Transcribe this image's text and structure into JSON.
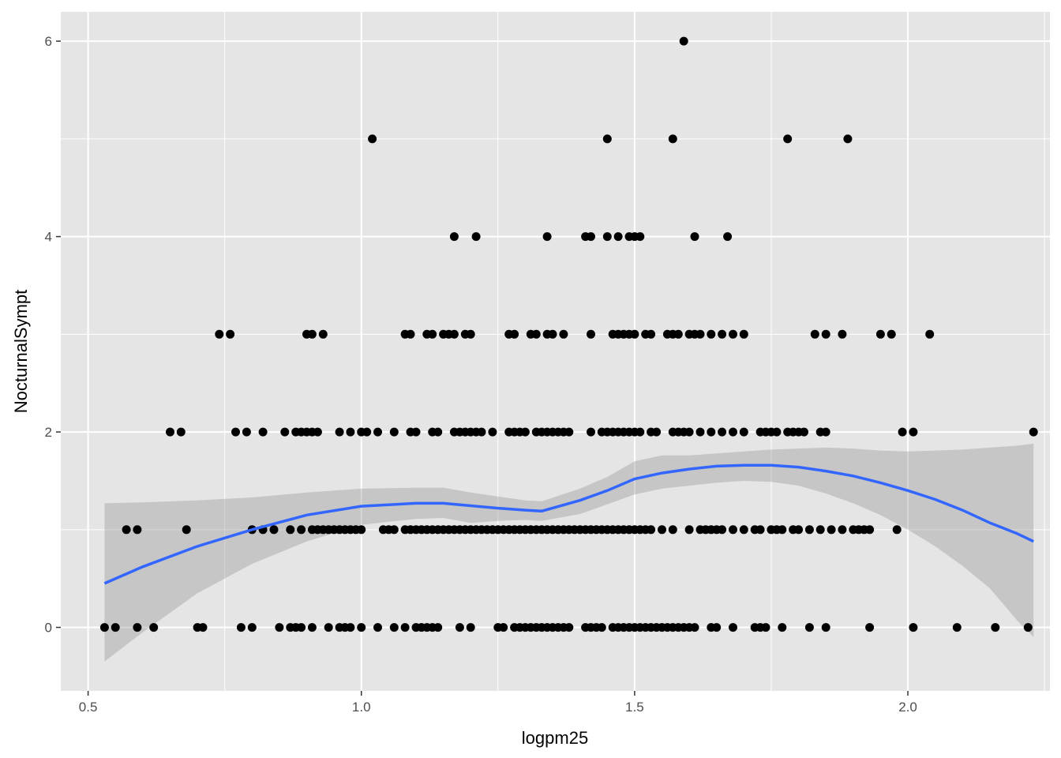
{
  "chart_data": {
    "type": "scatter",
    "xlabel": "logpm25",
    "ylabel": "NocturnalSympt",
    "xlim": [
      0.45,
      2.26
    ],
    "ylim": [
      -0.65,
      6.3
    ],
    "x_ticks": [
      0.5,
      1.0,
      1.5,
      2.0
    ],
    "x_tick_labels": [
      "0.5",
      "1.0",
      "1.5",
      "2.0"
    ],
    "y_ticks": [
      0,
      2,
      4,
      6
    ],
    "y_tick_labels": [
      "0",
      "2",
      "4",
      "6"
    ],
    "grid": true,
    "legend": "none",
    "colors": {
      "panel": "#e5e5e5",
      "grid": "#ffffff",
      "points": "#000000",
      "smooth_line": "#3366ff",
      "ribbon": "#999999"
    },
    "points": [
      [
        0.53,
        0
      ],
      [
        0.55,
        0
      ],
      [
        0.59,
        0
      ],
      [
        0.62,
        0
      ],
      [
        0.7,
        0
      ],
      [
        0.71,
        0
      ],
      [
        0.78,
        0
      ],
      [
        0.8,
        0
      ],
      [
        0.85,
        0
      ],
      [
        0.87,
        0
      ],
      [
        0.88,
        0
      ],
      [
        0.89,
        0
      ],
      [
        0.91,
        0
      ],
      [
        0.94,
        0
      ],
      [
        0.96,
        0
      ],
      [
        0.97,
        0
      ],
      [
        0.98,
        0
      ],
      [
        1.0,
        0
      ],
      [
        1.03,
        0
      ],
      [
        1.06,
        0
      ],
      [
        1.08,
        0
      ],
      [
        1.1,
        0
      ],
      [
        1.11,
        0
      ],
      [
        1.12,
        0
      ],
      [
        1.13,
        0
      ],
      [
        1.14,
        0
      ],
      [
        1.18,
        0
      ],
      [
        1.2,
        0
      ],
      [
        1.25,
        0
      ],
      [
        1.26,
        0
      ],
      [
        1.28,
        0
      ],
      [
        1.29,
        0
      ],
      [
        1.3,
        0
      ],
      [
        1.31,
        0
      ],
      [
        1.32,
        0
      ],
      [
        1.33,
        0
      ],
      [
        1.34,
        0
      ],
      [
        1.35,
        0
      ],
      [
        1.36,
        0
      ],
      [
        1.37,
        0
      ],
      [
        1.38,
        0
      ],
      [
        1.41,
        0
      ],
      [
        1.42,
        0
      ],
      [
        1.43,
        0
      ],
      [
        1.44,
        0
      ],
      [
        1.46,
        0
      ],
      [
        1.47,
        0
      ],
      [
        1.48,
        0
      ],
      [
        1.49,
        0
      ],
      [
        1.5,
        0
      ],
      [
        1.51,
        0
      ],
      [
        1.52,
        0
      ],
      [
        1.53,
        0
      ],
      [
        1.54,
        0
      ],
      [
        1.55,
        0
      ],
      [
        1.56,
        0
      ],
      [
        1.57,
        0
      ],
      [
        1.58,
        0
      ],
      [
        1.59,
        0
      ],
      [
        1.6,
        0
      ],
      [
        1.61,
        0
      ],
      [
        1.64,
        0
      ],
      [
        1.65,
        0
      ],
      [
        1.68,
        0
      ],
      [
        1.72,
        0
      ],
      [
        1.73,
        0
      ],
      [
        1.74,
        0
      ],
      [
        1.77,
        0
      ],
      [
        1.82,
        0
      ],
      [
        1.85,
        0
      ],
      [
        1.93,
        0
      ],
      [
        2.01,
        0
      ],
      [
        2.09,
        0
      ],
      [
        2.16,
        0
      ],
      [
        2.22,
        0
      ],
      [
        0.57,
        1
      ],
      [
        0.59,
        1
      ],
      [
        0.68,
        1
      ],
      [
        0.8,
        1
      ],
      [
        0.82,
        1
      ],
      [
        0.84,
        1
      ],
      [
        0.87,
        1
      ],
      [
        0.89,
        1
      ],
      [
        0.91,
        1
      ],
      [
        0.92,
        1
      ],
      [
        0.93,
        1
      ],
      [
        0.94,
        1
      ],
      [
        0.95,
        1
      ],
      [
        0.96,
        1
      ],
      [
        0.97,
        1
      ],
      [
        0.98,
        1
      ],
      [
        0.99,
        1
      ],
      [
        1.0,
        1
      ],
      [
        1.04,
        1
      ],
      [
        1.05,
        1
      ],
      [
        1.06,
        1
      ],
      [
        1.08,
        1
      ],
      [
        1.09,
        1
      ],
      [
        1.1,
        1
      ],
      [
        1.11,
        1
      ],
      [
        1.12,
        1
      ],
      [
        1.13,
        1
      ],
      [
        1.14,
        1
      ],
      [
        1.15,
        1
      ],
      [
        1.16,
        1
      ],
      [
        1.17,
        1
      ],
      [
        1.18,
        1
      ],
      [
        1.19,
        1
      ],
      [
        1.2,
        1
      ],
      [
        1.21,
        1
      ],
      [
        1.22,
        1
      ],
      [
        1.23,
        1
      ],
      [
        1.24,
        1
      ],
      [
        1.25,
        1
      ],
      [
        1.26,
        1
      ],
      [
        1.27,
        1
      ],
      [
        1.28,
        1
      ],
      [
        1.29,
        1
      ],
      [
        1.3,
        1
      ],
      [
        1.31,
        1
      ],
      [
        1.32,
        1
      ],
      [
        1.33,
        1
      ],
      [
        1.34,
        1
      ],
      [
        1.35,
        1
      ],
      [
        1.36,
        1
      ],
      [
        1.37,
        1
      ],
      [
        1.38,
        1
      ],
      [
        1.39,
        1
      ],
      [
        1.4,
        1
      ],
      [
        1.41,
        1
      ],
      [
        1.42,
        1
      ],
      [
        1.43,
        1
      ],
      [
        1.44,
        1
      ],
      [
        1.45,
        1
      ],
      [
        1.46,
        1
      ],
      [
        1.47,
        1
      ],
      [
        1.48,
        1
      ],
      [
        1.49,
        1
      ],
      [
        1.5,
        1
      ],
      [
        1.51,
        1
      ],
      [
        1.52,
        1
      ],
      [
        1.53,
        1
      ],
      [
        1.55,
        1
      ],
      [
        1.57,
        1
      ],
      [
        1.6,
        1
      ],
      [
        1.62,
        1
      ],
      [
        1.63,
        1
      ],
      [
        1.64,
        1
      ],
      [
        1.65,
        1
      ],
      [
        1.66,
        1
      ],
      [
        1.68,
        1
      ],
      [
        1.7,
        1
      ],
      [
        1.72,
        1
      ],
      [
        1.73,
        1
      ],
      [
        1.75,
        1
      ],
      [
        1.76,
        1
      ],
      [
        1.77,
        1
      ],
      [
        1.79,
        1
      ],
      [
        1.8,
        1
      ],
      [
        1.82,
        1
      ],
      [
        1.84,
        1
      ],
      [
        1.86,
        1
      ],
      [
        1.88,
        1
      ],
      [
        1.9,
        1
      ],
      [
        1.91,
        1
      ],
      [
        1.92,
        1
      ],
      [
        1.93,
        1
      ],
      [
        1.98,
        1
      ],
      [
        0.65,
        2
      ],
      [
        0.67,
        2
      ],
      [
        0.77,
        2
      ],
      [
        0.79,
        2
      ],
      [
        0.82,
        2
      ],
      [
        0.86,
        2
      ],
      [
        0.88,
        2
      ],
      [
        0.89,
        2
      ],
      [
        0.9,
        2
      ],
      [
        0.91,
        2
      ],
      [
        0.92,
        2
      ],
      [
        0.96,
        2
      ],
      [
        0.98,
        2
      ],
      [
        1.0,
        2
      ],
      [
        1.01,
        2
      ],
      [
        1.03,
        2
      ],
      [
        1.06,
        2
      ],
      [
        1.09,
        2
      ],
      [
        1.1,
        2
      ],
      [
        1.13,
        2
      ],
      [
        1.14,
        2
      ],
      [
        1.17,
        2
      ],
      [
        1.18,
        2
      ],
      [
        1.19,
        2
      ],
      [
        1.2,
        2
      ],
      [
        1.21,
        2
      ],
      [
        1.22,
        2
      ],
      [
        1.24,
        2
      ],
      [
        1.27,
        2
      ],
      [
        1.28,
        2
      ],
      [
        1.29,
        2
      ],
      [
        1.3,
        2
      ],
      [
        1.32,
        2
      ],
      [
        1.33,
        2
      ],
      [
        1.34,
        2
      ],
      [
        1.35,
        2
      ],
      [
        1.36,
        2
      ],
      [
        1.37,
        2
      ],
      [
        1.38,
        2
      ],
      [
        1.42,
        2
      ],
      [
        1.44,
        2
      ],
      [
        1.45,
        2
      ],
      [
        1.46,
        2
      ],
      [
        1.47,
        2
      ],
      [
        1.48,
        2
      ],
      [
        1.49,
        2
      ],
      [
        1.5,
        2
      ],
      [
        1.51,
        2
      ],
      [
        1.53,
        2
      ],
      [
        1.54,
        2
      ],
      [
        1.57,
        2
      ],
      [
        1.58,
        2
      ],
      [
        1.59,
        2
      ],
      [
        1.6,
        2
      ],
      [
        1.62,
        2
      ],
      [
        1.64,
        2
      ],
      [
        1.66,
        2
      ],
      [
        1.68,
        2
      ],
      [
        1.7,
        2
      ],
      [
        1.73,
        2
      ],
      [
        1.74,
        2
      ],
      [
        1.75,
        2
      ],
      [
        1.76,
        2
      ],
      [
        1.78,
        2
      ],
      [
        1.79,
        2
      ],
      [
        1.8,
        2
      ],
      [
        1.81,
        2
      ],
      [
        1.84,
        2
      ],
      [
        1.85,
        2
      ],
      [
        1.99,
        2
      ],
      [
        2.01,
        2
      ],
      [
        2.23,
        2
      ],
      [
        0.74,
        3
      ],
      [
        0.76,
        3
      ],
      [
        0.9,
        3
      ],
      [
        0.91,
        3
      ],
      [
        0.93,
        3
      ],
      [
        1.08,
        3
      ],
      [
        1.09,
        3
      ],
      [
        1.12,
        3
      ],
      [
        1.13,
        3
      ],
      [
        1.15,
        3
      ],
      [
        1.16,
        3
      ],
      [
        1.17,
        3
      ],
      [
        1.19,
        3
      ],
      [
        1.2,
        3
      ],
      [
        1.27,
        3
      ],
      [
        1.28,
        3
      ],
      [
        1.31,
        3
      ],
      [
        1.32,
        3
      ],
      [
        1.34,
        3
      ],
      [
        1.35,
        3
      ],
      [
        1.37,
        3
      ],
      [
        1.42,
        3
      ],
      [
        1.46,
        3
      ],
      [
        1.47,
        3
      ],
      [
        1.48,
        3
      ],
      [
        1.49,
        3
      ],
      [
        1.5,
        3
      ],
      [
        1.52,
        3
      ],
      [
        1.53,
        3
      ],
      [
        1.56,
        3
      ],
      [
        1.57,
        3
      ],
      [
        1.58,
        3
      ],
      [
        1.6,
        3
      ],
      [
        1.61,
        3
      ],
      [
        1.62,
        3
      ],
      [
        1.64,
        3
      ],
      [
        1.66,
        3
      ],
      [
        1.68,
        3
      ],
      [
        1.7,
        3
      ],
      [
        1.83,
        3
      ],
      [
        1.85,
        3
      ],
      [
        1.88,
        3
      ],
      [
        1.95,
        3
      ],
      [
        1.97,
        3
      ],
      [
        2.04,
        3
      ],
      [
        1.17,
        4
      ],
      [
        1.21,
        4
      ],
      [
        1.34,
        4
      ],
      [
        1.41,
        4
      ],
      [
        1.42,
        4
      ],
      [
        1.45,
        4
      ],
      [
        1.47,
        4
      ],
      [
        1.49,
        4
      ],
      [
        1.5,
        4
      ],
      [
        1.51,
        4
      ],
      [
        1.61,
        4
      ],
      [
        1.67,
        4
      ],
      [
        1.02,
        5
      ],
      [
        1.45,
        5
      ],
      [
        1.57,
        5
      ],
      [
        1.78,
        5
      ],
      [
        1.89,
        5
      ],
      [
        1.59,
        6
      ]
    ],
    "smooth_fit": [
      [
        0.53,
        0.45
      ],
      [
        0.6,
        0.62
      ],
      [
        0.7,
        0.83
      ],
      [
        0.8,
        1.0
      ],
      [
        0.9,
        1.15
      ],
      [
        1.0,
        1.24
      ],
      [
        1.1,
        1.27
      ],
      [
        1.15,
        1.27
      ],
      [
        1.25,
        1.22
      ],
      [
        1.3,
        1.2
      ],
      [
        1.33,
        1.19
      ],
      [
        1.4,
        1.3
      ],
      [
        1.45,
        1.4
      ],
      [
        1.5,
        1.52
      ],
      [
        1.55,
        1.58
      ],
      [
        1.6,
        1.62
      ],
      [
        1.65,
        1.65
      ],
      [
        1.7,
        1.66
      ],
      [
        1.75,
        1.66
      ],
      [
        1.8,
        1.64
      ],
      [
        1.85,
        1.6
      ],
      [
        1.9,
        1.55
      ],
      [
        1.95,
        1.48
      ],
      [
        2.0,
        1.4
      ],
      [
        2.05,
        1.31
      ],
      [
        2.1,
        1.2
      ],
      [
        2.15,
        1.07
      ],
      [
        2.2,
        0.96
      ],
      [
        2.23,
        0.88
      ]
    ],
    "ribbon_upper": [
      [
        0.53,
        1.27
      ],
      [
        0.6,
        1.28
      ],
      [
        0.7,
        1.3
      ],
      [
        0.8,
        1.33
      ],
      [
        0.9,
        1.38
      ],
      [
        1.0,
        1.42
      ],
      [
        1.1,
        1.43
      ],
      [
        1.15,
        1.43
      ],
      [
        1.2,
        1.38
      ],
      [
        1.25,
        1.34
      ],
      [
        1.3,
        1.3
      ],
      [
        1.33,
        1.29
      ],
      [
        1.4,
        1.42
      ],
      [
        1.45,
        1.54
      ],
      [
        1.5,
        1.7
      ],
      [
        1.55,
        1.76
      ],
      [
        1.6,
        1.76
      ],
      [
        1.65,
        1.78
      ],
      [
        1.7,
        1.8
      ],
      [
        1.75,
        1.82
      ],
      [
        1.8,
        1.83
      ],
      [
        1.85,
        1.84
      ],
      [
        1.9,
        1.83
      ],
      [
        1.95,
        1.81
      ],
      [
        2.0,
        1.8
      ],
      [
        2.05,
        1.81
      ],
      [
        2.1,
        1.82
      ],
      [
        2.15,
        1.84
      ],
      [
        2.2,
        1.86
      ],
      [
        2.23,
        1.88
      ]
    ],
    "ribbon_lower": [
      [
        0.53,
        -0.35
      ],
      [
        0.6,
        -0.05
      ],
      [
        0.7,
        0.35
      ],
      [
        0.8,
        0.65
      ],
      [
        0.9,
        0.88
      ],
      [
        1.0,
        1.05
      ],
      [
        1.1,
        1.11
      ],
      [
        1.15,
        1.12
      ],
      [
        1.2,
        1.07
      ],
      [
        1.25,
        1.09
      ],
      [
        1.3,
        1.1
      ],
      [
        1.33,
        1.09
      ],
      [
        1.4,
        1.16
      ],
      [
        1.45,
        1.26
      ],
      [
        1.5,
        1.36
      ],
      [
        1.55,
        1.42
      ],
      [
        1.6,
        1.45
      ],
      [
        1.65,
        1.48
      ],
      [
        1.7,
        1.5
      ],
      [
        1.75,
        1.49
      ],
      [
        1.8,
        1.45
      ],
      [
        1.85,
        1.37
      ],
      [
        1.9,
        1.27
      ],
      [
        1.95,
        1.15
      ],
      [
        2.0,
        1.0
      ],
      [
        2.05,
        0.83
      ],
      [
        2.1,
        0.63
      ],
      [
        2.15,
        0.4
      ],
      [
        2.2,
        0.07
      ],
      [
        2.23,
        -0.1
      ]
    ]
  }
}
